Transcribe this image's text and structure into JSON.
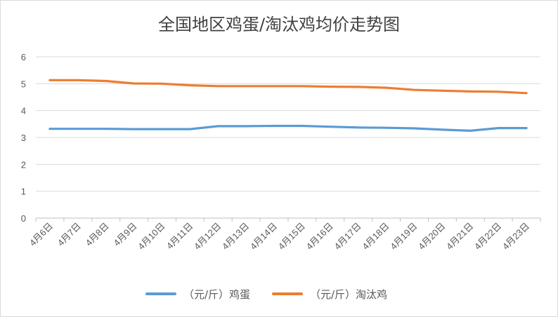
{
  "chart_data": {
    "type": "line",
    "title": "全国地区鸡蛋/淘汰鸡均价走势图",
    "xlabel": "",
    "ylabel": "",
    "categories": [
      "4月6日",
      "4月7日",
      "4月8日",
      "4月9日",
      "4月10日",
      "4月11日",
      "4月12日",
      "4月13日",
      "4月14日",
      "4月15日",
      "4月16日",
      "4月17日",
      "4月18日",
      "4月19日",
      "4月20日",
      "4月21日",
      "4月22日",
      "4月23日"
    ],
    "y_ticks": [
      "0",
      "1",
      "2",
      "3",
      "4",
      "5",
      "6"
    ],
    "ylim": [
      0,
      6
    ],
    "grid": true,
    "legend_position": "bottom",
    "series": [
      {
        "name": "（元/斤）鸡蛋",
        "color": "#5b9bd5",
        "values": [
          3.32,
          3.32,
          3.32,
          3.31,
          3.31,
          3.31,
          3.42,
          3.42,
          3.43,
          3.43,
          3.4,
          3.37,
          3.36,
          3.34,
          3.29,
          3.25,
          3.35,
          3.35
        ]
      },
      {
        "name": "（元/斤）淘汰鸡",
        "color": "#ed7d31",
        "values": [
          5.13,
          5.13,
          5.1,
          5.01,
          5.0,
          4.94,
          4.91,
          4.91,
          4.91,
          4.91,
          4.89,
          4.88,
          4.85,
          4.77,
          4.74,
          4.71,
          4.7,
          4.65
        ]
      }
    ]
  }
}
